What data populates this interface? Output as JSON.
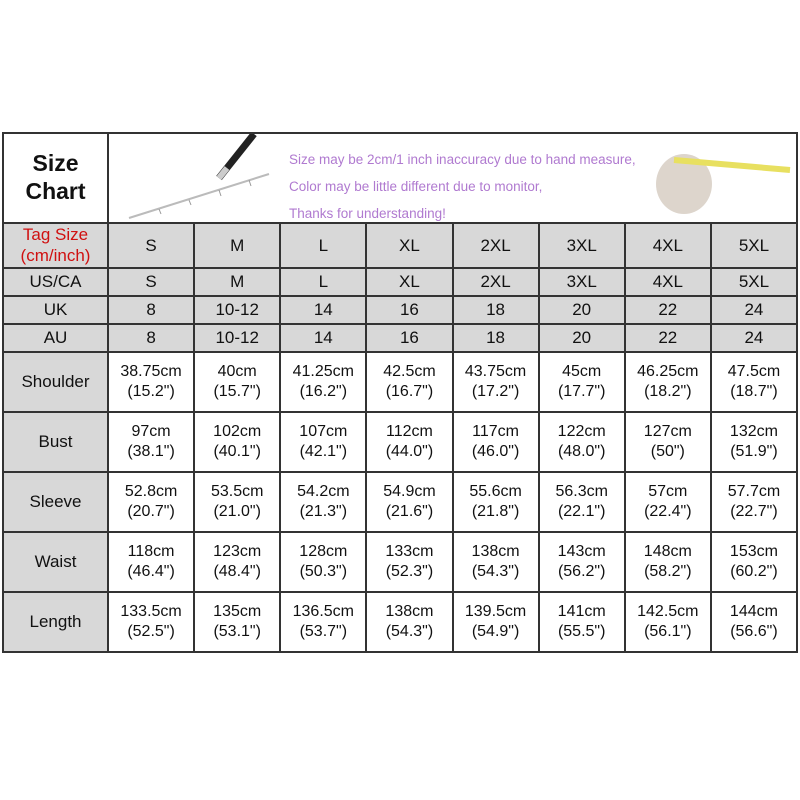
{
  "title": [
    "Size",
    "Chart"
  ],
  "notes": [
    "Size may be 2cm/1 inch inaccuracy due to hand measure,",
    "Color may be little different due to monitor,",
    "Thanks for understanding!"
  ],
  "tag_label": [
    "Tag Size",
    "(cm/inch)"
  ],
  "tag_sizes": [
    "S",
    "M",
    "L",
    "XL",
    "2XL",
    "3XL",
    "4XL",
    "5XL"
  ],
  "size_rows": [
    {
      "label": "US/CA",
      "values": [
        "S",
        "M",
        "L",
        "XL",
        "2XL",
        "3XL",
        "4XL",
        "5XL"
      ]
    },
    {
      "label": "UK",
      "values": [
        "8",
        "10-12",
        "14",
        "16",
        "18",
        "20",
        "22",
        "24"
      ]
    },
    {
      "label": "AU",
      "values": [
        "8",
        "10-12",
        "14",
        "16",
        "18",
        "20",
        "22",
        "24"
      ]
    }
  ],
  "measure_rows": [
    {
      "label": "Shoulder",
      "values": [
        [
          "38.75cm",
          "(15.2\")"
        ],
        [
          "40cm",
          "(15.7\")"
        ],
        [
          "41.25cm",
          "(16.2\")"
        ],
        [
          "42.5cm",
          "(16.7\")"
        ],
        [
          "43.75cm",
          "(17.2\")"
        ],
        [
          "45cm",
          "(17.7\")"
        ],
        [
          "46.25cm",
          "(18.2\")"
        ],
        [
          "47.5cm",
          "(18.7\")"
        ]
      ]
    },
    {
      "label": "Bust",
      "values": [
        [
          "97cm",
          "(38.1\")"
        ],
        [
          "102cm",
          "(40.1\")"
        ],
        [
          "107cm",
          "(42.1\")"
        ],
        [
          "112cm",
          "(44.0\")"
        ],
        [
          "117cm",
          "(46.0\")"
        ],
        [
          "122cm",
          "(48.0\")"
        ],
        [
          "127cm",
          "(50\")"
        ],
        [
          "132cm",
          "(51.9\")"
        ]
      ]
    },
    {
      "label": "Sleeve",
      "values": [
        [
          "52.8cm",
          "(20.7\")"
        ],
        [
          "53.5cm",
          "(21.0\")"
        ],
        [
          "54.2cm",
          "(21.3\")"
        ],
        [
          "54.9cm",
          "(21.6\")"
        ],
        [
          "55.6cm",
          "(21.8\")"
        ],
        [
          "56.3cm",
          "(22.1\")"
        ],
        [
          "57cm",
          "(22.4\")"
        ],
        [
          "57.7cm",
          "(22.7\")"
        ]
      ]
    },
    {
      "label": "Waist",
      "values": [
        [
          "118cm",
          "(46.4\")"
        ],
        [
          "123cm",
          "(48.4\")"
        ],
        [
          "128cm",
          "(50.3\")"
        ],
        [
          "133cm",
          "(52.3\")"
        ],
        [
          "138cm",
          "(54.3\")"
        ],
        [
          "143cm",
          "(56.2\")"
        ],
        [
          "148cm",
          "(58.2\")"
        ],
        [
          "153cm",
          "(60.2\")"
        ]
      ]
    },
    {
      "label": "Length",
      "values": [
        [
          "133.5cm",
          "(52.5\")"
        ],
        [
          "135cm",
          "(53.1\")"
        ],
        [
          "136.5cm",
          "(53.7\")"
        ],
        [
          "138cm",
          "(54.3\")"
        ],
        [
          "139.5cm",
          "(54.9\")"
        ],
        [
          "141cm",
          "(55.5\")"
        ],
        [
          "142.5cm",
          "(56.1\")"
        ],
        [
          "144cm",
          "(56.6\")"
        ]
      ]
    }
  ]
}
